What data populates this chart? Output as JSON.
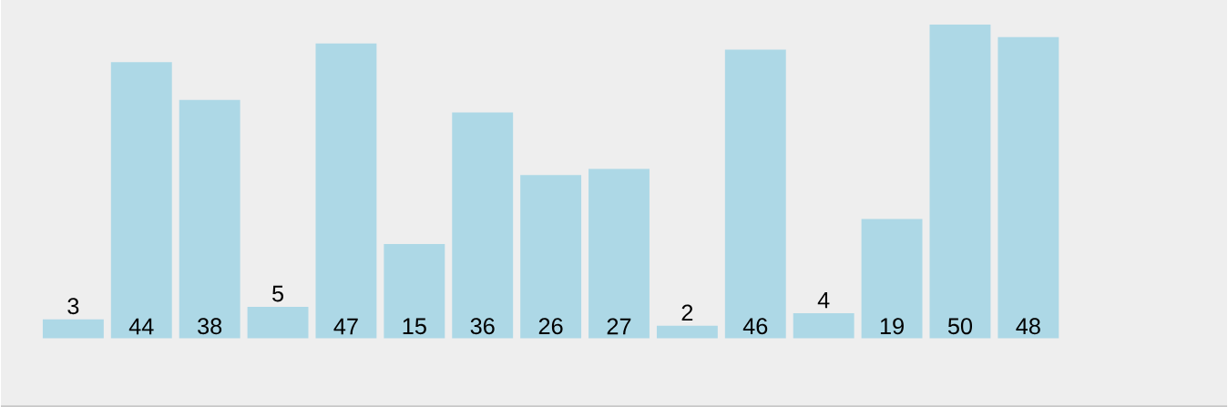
{
  "chart_data": {
    "type": "bar",
    "categories": [
      null,
      null,
      null,
      null,
      null,
      null,
      null,
      null,
      null,
      null,
      null,
      null,
      null,
      null,
      null
    ],
    "values": [
      3,
      44,
      38,
      5,
      47,
      15,
      36,
      26,
      27,
      2,
      46,
      4,
      19,
      50,
      48
    ],
    "color": "#add8e6",
    "data_labels": true
  }
}
